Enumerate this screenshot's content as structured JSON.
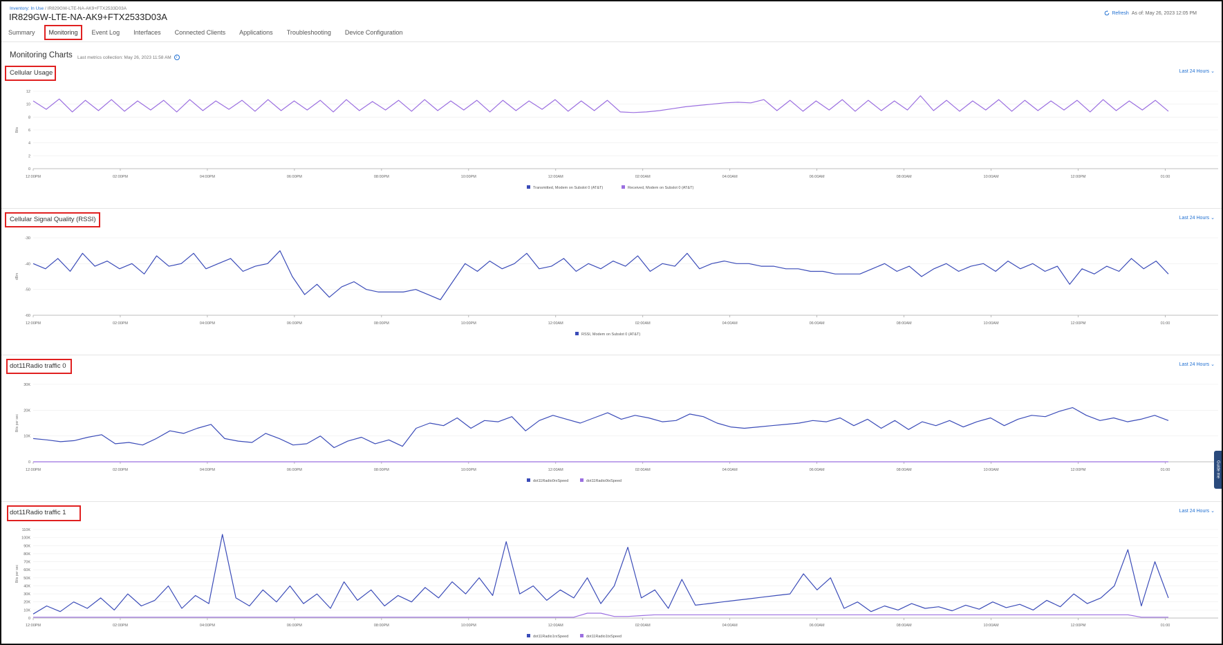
{
  "breadcrumb": {
    "link": "Inventory: In Use",
    "sep": "/",
    "current": "IR829GW-LTE-NA-AK9+FTX2533D03A"
  },
  "device_title": "IR829GW-LTE-NA-AK9+FTX2533D03A",
  "header": {
    "refresh": "Refresh",
    "as_of": "As of: May 26, 2023 12:05 PM"
  },
  "tabs": [
    {
      "label": "Summary"
    },
    {
      "label": "Monitoring"
    },
    {
      "label": "Event Log"
    },
    {
      "label": "Interfaces"
    },
    {
      "label": "Connected Clients"
    },
    {
      "label": "Applications"
    },
    {
      "label": "Troubleshooting"
    },
    {
      "label": "Device Configuration"
    }
  ],
  "active_tab": "Monitoring",
  "monitoring": {
    "title": "Monitoring Charts",
    "subtitle": "Last metrics collection: May 26, 2023 11:58 AM"
  },
  "colors": {
    "series_blue": "#3a4bb8",
    "series_purple": "#9b6fe0",
    "link": "#1f6fd1",
    "highlight": "#e02020"
  },
  "x_ticks": [
    "12:00PM",
    "02:00PM",
    "04:00PM",
    "06:00PM",
    "08:00PM",
    "10:00PM",
    "12:00AM",
    "02:00AM",
    "04:00AM",
    "06:00AM",
    "08:00AM",
    "10:00AM",
    "12:00PM",
    "01:00"
  ],
  "chart_data": [
    {
      "type": "line",
      "title": "Cellular Usage",
      "range_label": "Last 24 Hours",
      "ylabel": "Bits",
      "ylim": [
        0,
        12
      ],
      "yticks": [
        "0",
        "2",
        "4",
        "6",
        "8",
        "10",
        "12"
      ],
      "series": [
        {
          "name": "Transmitted, Modem on Subslot 0 (AT&T)",
          "color": "#3a4bb8",
          "values": []
        },
        {
          "name": "Received, Modem on Subslot 0 (AT&T)",
          "color": "#9b6fe0",
          "values": [
            10.5,
            9.2,
            10.8,
            8.8,
            10.6,
            9.0,
            10.7,
            8.9,
            10.5,
            9.1,
            10.6,
            8.8,
            10.7,
            9.0,
            10.5,
            9.2,
            10.6,
            8.9,
            10.7,
            9.0,
            10.5,
            9.1,
            10.6,
            8.8,
            10.7,
            9.0,
            10.4,
            9.1,
            10.6,
            8.9,
            10.7,
            9.0,
            10.5,
            9.1,
            10.6,
            8.8,
            10.6,
            9.0,
            10.5,
            9.2,
            10.7,
            8.9,
            10.5,
            9.0,
            10.6,
            8.8,
            8.7,
            8.8,
            9.0,
            9.3,
            9.6,
            9.8,
            10.0,
            10.2,
            10.3,
            10.2,
            10.7,
            9.0,
            10.6,
            8.9,
            10.5,
            9.1,
            10.7,
            8.9,
            10.6,
            9.0,
            10.5,
            9.1,
            11.3,
            9.0,
            10.6,
            8.9,
            10.5,
            9.1,
            10.7,
            8.9,
            10.6,
            9.0,
            10.5,
            9.1,
            10.6,
            8.8,
            10.7,
            9.0,
            10.5,
            9.1,
            10.6,
            8.9
          ]
        }
      ]
    },
    {
      "type": "line",
      "title": "Cellular Signal Quality (RSSI)",
      "range_label": "Last 24 Hours",
      "ylabel": "dBm",
      "ylim": [
        -60,
        -30
      ],
      "yticks": [
        "-30",
        "-40",
        "-50",
        "-60"
      ],
      "series": [
        {
          "name": "RSSI, Modem on Subslot 0 (AT&T)",
          "color": "#3a4bb8",
          "values": [
            -40,
            -42,
            -38,
            -43,
            -36,
            -41,
            -39,
            -42,
            -40,
            -44,
            -37,
            -41,
            -40,
            -36,
            -42,
            -40,
            -38,
            -43,
            -41,
            -40,
            -35,
            -45,
            -52,
            -48,
            -53,
            -49,
            -47,
            -50,
            -51,
            -51,
            -51,
            -50,
            -52,
            -54,
            -47,
            -40,
            -43,
            -39,
            -42,
            -40,
            -36,
            -42,
            -41,
            -38,
            -43,
            -40,
            -42,
            -39,
            -41,
            -37,
            -43,
            -40,
            -41,
            -36,
            -42,
            -40,
            -39,
            -40,
            -40,
            -41,
            -41,
            -42,
            -42,
            -43,
            -43,
            -44,
            -44,
            -44,
            -42,
            -40,
            -43,
            -41,
            -45,
            -42,
            -40,
            -43,
            -41,
            -40,
            -43,
            -39,
            -42,
            -40,
            -43,
            -41,
            -48,
            -42,
            -44,
            -41,
            -43,
            -38,
            -42,
            -39,
            -44
          ]
        }
      ]
    },
    {
      "type": "line",
      "title": "dot11Radio traffic 0",
      "range_label": "Last 24 Hours",
      "ylabel": "Bits per sec",
      "ylim": [
        0,
        30000
      ],
      "yticks": [
        "0",
        "10K",
        "20K",
        "30K"
      ],
      "series": [
        {
          "name": "dot11Radio0rxSpeed",
          "color": "#3a4bb8",
          "values": [
            9000,
            8500,
            7800,
            8200,
            9500,
            10500,
            7000,
            7500,
            6500,
            9000,
            12000,
            11000,
            13000,
            14500,
            9000,
            8000,
            7500,
            11000,
            9000,
            6500,
            7000,
            10000,
            5500,
            8000,
            9500,
            7000,
            8500,
            6000,
            13000,
            15000,
            14000,
            17000,
            13000,
            16000,
            15500,
            17500,
            12000,
            16000,
            18000,
            16500,
            15000,
            17000,
            19000,
            16500,
            18000,
            17000,
            15500,
            16000,
            18500,
            17500,
            15000,
            13500,
            13000,
            13500,
            14000,
            14500,
            15000,
            16000,
            15500,
            17000,
            14000,
            16500,
            13000,
            16000,
            12500,
            15500,
            14000,
            16000,
            13500,
            15500,
            17000,
            14000,
            16500,
            18000,
            17500,
            19500,
            21000,
            18000,
            16000,
            17000,
            15500,
            16500,
            18000,
            16000
          ]
        },
        {
          "name": "dot11Radio0txSpeed",
          "color": "#9b6fe0",
          "values": [
            0,
            0,
            0,
            0,
            0,
            0,
            0,
            0,
            0,
            0,
            0,
            0,
            0,
            0,
            0,
            0,
            0,
            0,
            0,
            0,
            0,
            0,
            0,
            0,
            0,
            0,
            0,
            0,
            0,
            0,
            0,
            0,
            0,
            0,
            0,
            0,
            0,
            0,
            0,
            0,
            0,
            0,
            0,
            0,
            0,
            0,
            0,
            0,
            0,
            0,
            0,
            0,
            0,
            0,
            0,
            0,
            0,
            0,
            0,
            0,
            0,
            0,
            0,
            0,
            0,
            0,
            0,
            0,
            0,
            0,
            0,
            0,
            0,
            0,
            0,
            0,
            0,
            0,
            0,
            0,
            0,
            0,
            0,
            0
          ]
        }
      ]
    },
    {
      "type": "line",
      "title": "dot11Radio traffic 1",
      "range_label": "Last 24 Hours",
      "ylabel": "Bits per sec",
      "ylim": [
        0,
        110000
      ],
      "yticks": [
        "0",
        "10K",
        "20K",
        "30K",
        "40K",
        "50K",
        "60K",
        "70K",
        "80K",
        "90K",
        "100K",
        "110K"
      ],
      "series": [
        {
          "name": "dot11Radio1rxSpeed",
          "color": "#3a4bb8",
          "values": [
            5000,
            15000,
            8000,
            20000,
            12000,
            25000,
            10000,
            30000,
            15000,
            22000,
            40000,
            12000,
            28000,
            18000,
            104000,
            25000,
            15000,
            35000,
            20000,
            40000,
            18000,
            30000,
            12000,
            45000,
            22000,
            35000,
            15000,
            28000,
            20000,
            38000,
            25000,
            45000,
            30000,
            50000,
            28000,
            95000,
            30000,
            40000,
            22000,
            35000,
            25000,
            50000,
            18000,
            40000,
            88000,
            25000,
            35000,
            12000,
            48000,
            16000,
            18000,
            20000,
            22000,
            24000,
            26000,
            28000,
            30000,
            55000,
            35000,
            50000,
            12000,
            20000,
            8000,
            15000,
            10000,
            18000,
            12000,
            14000,
            9000,
            16000,
            11000,
            20000,
            13000,
            17000,
            10000,
            22000,
            14000,
            30000,
            18000,
            25000,
            40000,
            85000,
            15000,
            70000,
            25000
          ]
        },
        {
          "name": "dot11Radio1txSpeed",
          "color": "#9b6fe0",
          "values": [
            1000,
            1000,
            1000,
            1000,
            1000,
            1000,
            1000,
            1000,
            1000,
            1000,
            1000,
            1000,
            1000,
            1000,
            1000,
            1000,
            1000,
            1000,
            1000,
            1000,
            1000,
            1000,
            1000,
            1000,
            1000,
            1000,
            1000,
            1000,
            1000,
            1000,
            1000,
            1000,
            1000,
            1000,
            1000,
            1000,
            1000,
            1000,
            1000,
            1000,
            1000,
            6000,
            6000,
            2000,
            2000,
            3000,
            4000,
            4000,
            4000,
            4000,
            4000,
            4000,
            4000,
            4000,
            4000,
            4000,
            4000,
            4000,
            4000,
            4000,
            4000,
            4000,
            4000,
            4000,
            4000,
            4000,
            4000,
            4000,
            4000,
            4000,
            4000,
            4000,
            4000,
            4000,
            4000,
            4000,
            4000,
            4000,
            4000,
            4000,
            4000,
            4000,
            1000,
            1000,
            1000
          ]
        }
      ]
    }
  ],
  "side_tab": "Guide me"
}
